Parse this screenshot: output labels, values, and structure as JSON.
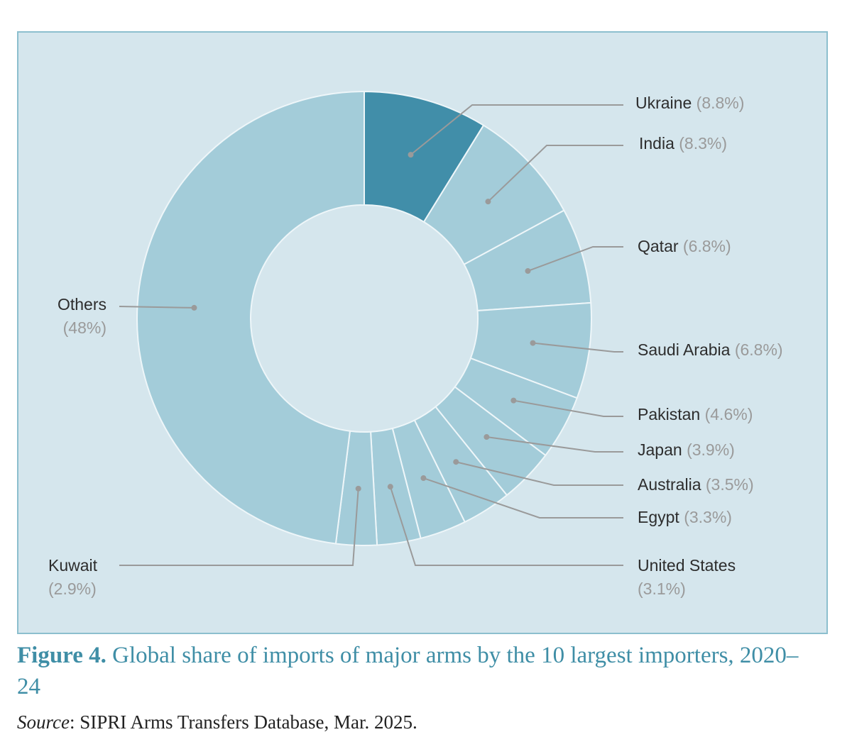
{
  "chart_data": {
    "type": "pie",
    "variant": "donut",
    "title": "Global share of imports of major arms by the 10 largest importers, 2020–24",
    "figure_label": "Figure 4.",
    "source_label": "Source",
    "source_text": ": SIPRI Arms Transfers Database, Mar. 2025.",
    "unit": "%",
    "slices": [
      {
        "name": "Ukraine",
        "value": 8.8,
        "label": "(8.8%)",
        "color": "#418ea9"
      },
      {
        "name": "India",
        "value": 8.3,
        "label": "(8.3%)",
        "color": "#a3ccd9"
      },
      {
        "name": "Qatar",
        "value": 6.8,
        "label": "(6.8%)",
        "color": "#a3ccd9"
      },
      {
        "name": "Saudi Arabia",
        "value": 6.8,
        "label": "(6.8%)",
        "color": "#a3ccd9"
      },
      {
        "name": "Pakistan",
        "value": 4.6,
        "label": "(4.6%)",
        "color": "#a3ccd9"
      },
      {
        "name": "Japan",
        "value": 3.9,
        "label": "(3.9%)",
        "color": "#a3ccd9"
      },
      {
        "name": "Australia",
        "value": 3.5,
        "label": "(3.5%)",
        "color": "#a3ccd9"
      },
      {
        "name": "Egypt",
        "value": 3.3,
        "label": "(3.3%)",
        "color": "#a3ccd9"
      },
      {
        "name": "United States",
        "value": 3.1,
        "label": "(3.1%)",
        "color": "#a3ccd9"
      },
      {
        "name": "Kuwait",
        "value": 2.9,
        "label": "(2.9%)",
        "color": "#a3ccd9"
      },
      {
        "name": "Others",
        "value": 48,
        "label": "(48%)",
        "color": "#a3ccd9"
      }
    ],
    "background_color": "#d5e6ed",
    "legend": "none"
  }
}
